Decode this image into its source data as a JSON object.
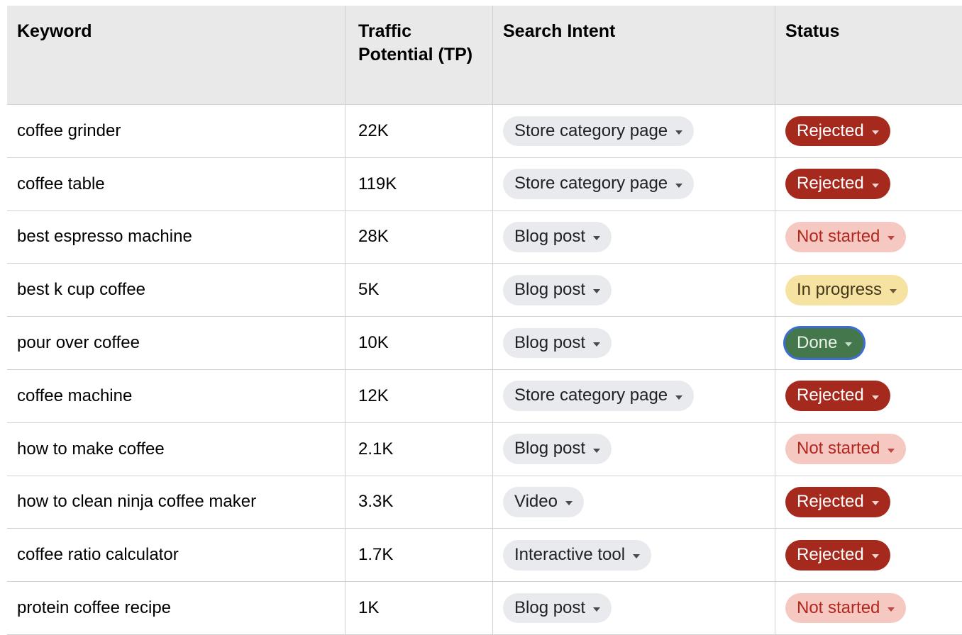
{
  "table": {
    "columns": [
      "Keyword",
      "Traffic Potential (TP)",
      "Search Intent",
      "Status"
    ],
    "rows": [
      {
        "keyword": "coffee grinder",
        "tp": "22K",
        "intent": "Store category page",
        "status": "Rejected",
        "status_key": "rejected"
      },
      {
        "keyword": "coffee table",
        "tp": "119K",
        "intent": "Store category page",
        "status": "Rejected",
        "status_key": "rejected"
      },
      {
        "keyword": "best espresso machine",
        "tp": "28K",
        "intent": "Blog post",
        "status": "Not started",
        "status_key": "not-started"
      },
      {
        "keyword": "best k cup coffee",
        "tp": "5K",
        "intent": "Blog post",
        "status": "In progress",
        "status_key": "in-progress"
      },
      {
        "keyword": "pour over coffee",
        "tp": "10K",
        "intent": "Blog post",
        "status": "Done",
        "status_key": "done"
      },
      {
        "keyword": "coffee machine",
        "tp": "12K",
        "intent": "Store category page",
        "status": "Rejected",
        "status_key": "rejected"
      },
      {
        "keyword": "how to make coffee",
        "tp": "2.1K",
        "intent": "Blog post",
        "status": "Not started",
        "status_key": "not-started"
      },
      {
        "keyword": "how to clean ninja coffee maker",
        "tp": "3.3K",
        "intent": "Video",
        "status": "Rejected",
        "status_key": "rejected"
      },
      {
        "keyword": "coffee ratio calculator",
        "tp": "1.7K",
        "intent": "Interactive tool",
        "status": "Rejected",
        "status_key": "rejected"
      },
      {
        "keyword": "protein coffee recipe",
        "tp": "1K",
        "intent": "Blog post",
        "status": "Not started",
        "status_key": "not-started"
      }
    ]
  },
  "colors": {
    "header-bg": "#e9e9e9",
    "border": "#d2d2d2",
    "chip-bg": "#e8eaed",
    "chip-text": "#202124",
    "rejected-bg": "#a5291d",
    "rejected-text": "#ffffff",
    "notstarted-bg": "#f5c9c1",
    "notstarted-text": "#b3261e",
    "inprogress-bg": "#f7e3a1",
    "inprogress-text": "#42381a",
    "done-bg": "#44784c",
    "done-text": "#eaf2ea",
    "done-ring": "#3d6ed0"
  }
}
